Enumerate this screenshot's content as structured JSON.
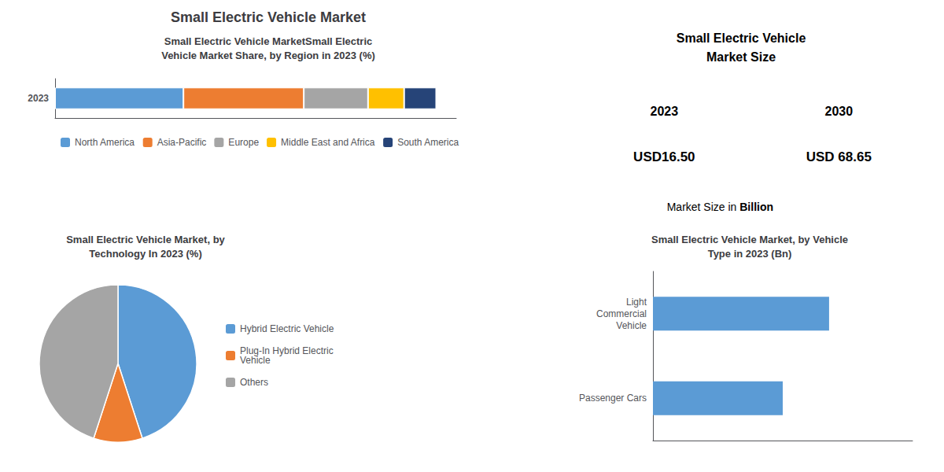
{
  "title": "Small Electric Vehicle Market",
  "chart_data": [
    {
      "type": "bar",
      "title": "Small Electric Vehicle MarketSmall Electric\nVehicle Market Share, by Region in 2023 (%)",
      "orientation": "horizontal",
      "stacked": true,
      "categories": [
        "2023"
      ],
      "series": [
        {
          "name": "North America",
          "color": "#5b9bd5",
          "values": [
            32
          ]
        },
        {
          "name": "Asia-Pacific",
          "color": "#ed7d31",
          "values": [
            30
          ]
        },
        {
          "name": "Europe",
          "color": "#a5a5a5",
          "values": [
            16
          ]
        },
        {
          "name": "Middle East and Africa",
          "color": "#ffc000",
          "values": [
            9
          ]
        },
        {
          "name": "South America",
          "color": "#264478",
          "values": [
            8
          ]
        }
      ],
      "xlim": [
        0,
        100
      ],
      "grid": false,
      "tick_labels": "y",
      "legend": "bottom"
    },
    {
      "type": "text",
      "title": "Small Electric Vehicle\nMarket Size",
      "categories": [
        "2023",
        "2030"
      ],
      "values": [
        16.5,
        68.65
      ],
      "value_labels": [
        "USD16.50",
        "USD 68.65"
      ],
      "annotations": [
        "Market Size in ",
        "Billion"
      ]
    },
    {
      "type": "pie",
      "title": "Small Electric Vehicle Market, by\nTechnology In 2023 (%)",
      "categories": [
        "Hybrid Electric Vehicle",
        "Plug-In Hybrid Electric\nVehicle",
        "Others"
      ],
      "values": [
        45,
        10,
        45
      ],
      "colors": [
        "#5b9bd5",
        "#ed7d31",
        "#a5a5a5"
      ],
      "legend": "right"
    },
    {
      "type": "bar",
      "title": "Small Electric Vehicle Market, by Vehicle\nType in 2023 (Bn)",
      "orientation": "horizontal",
      "categories": [
        "Light\nCommercial\nVehicle",
        "Passenger Cars"
      ],
      "values": [
        9.5,
        7.0
      ],
      "color": "#5b9bd5",
      "xlim": [
        0,
        14
      ],
      "grid": false,
      "tick_labels": "y"
    }
  ]
}
